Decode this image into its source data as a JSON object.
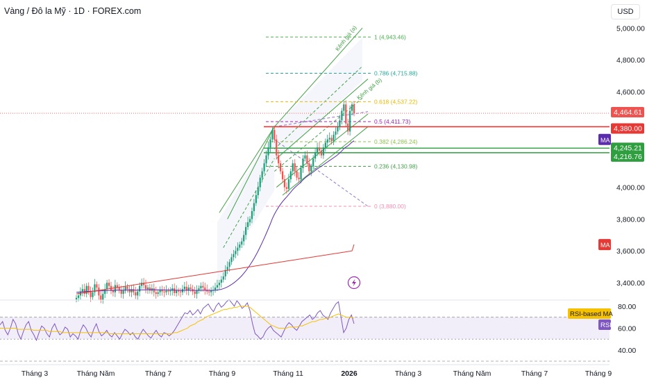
{
  "header": {
    "title": "Vàng / Đô la Mỹ · 1D · FOREX.com",
    "currency": "USD"
  },
  "colors": {
    "up": "#26a69a",
    "down": "#ef5350",
    "candle": "#1a9e78",
    "ma_short": "#5b2bb0",
    "ma_long": "#e53935",
    "channel": "#43a047",
    "level_red": "#e53935",
    "level_green": "#2e9e3f",
    "rsi_line": "#7e57c2",
    "rsi_ma": "#f5c100",
    "rsi_band": "#ede7f6",
    "fib_1": "#4caf50",
    "fib_0786": "#26a69a",
    "fib_0618": "#e6b800",
    "fib_05": "#9c27b0",
    "fib_0382": "#8bc34a",
    "fib_0236": "#43a047",
    "fib_0": "#f48fb1"
  },
  "chart_data": [
    {
      "type": "candlestick",
      "title": "Vàng / Đô la Mỹ · 1D · FOREX.com",
      "ylim": [
        3300,
        5080
      ],
      "y_ticks": [
        "5,000.00",
        "4,800.00",
        "4,600.00",
        "4,000.00",
        "3,800.00",
        "3,600.00",
        "3,400.00"
      ],
      "y_tick_values": [
        5000,
        4800,
        4600,
        4000,
        3800,
        3600,
        3400
      ],
      "x_labels": [
        "Tháng 3",
        "Tháng Năm",
        "Tháng 7",
        "Tháng 9",
        "Tháng 11",
        "2026",
        "Tháng 3",
        "Tháng Năm",
        "Tháng 7",
        "Tháng 9"
      ],
      "close_series": [
        3305,
        3320,
        3345,
        3360,
        3330,
        3380,
        3350,
        3310,
        3340,
        3390,
        3370,
        3320,
        3290,
        3330,
        3360,
        3400,
        3380,
        3350,
        3340,
        3385,
        3370,
        3355,
        3330,
        3350,
        3375,
        3360,
        3340,
        3360,
        3340,
        3320,
        3345,
        3380,
        3400,
        3385,
        3360,
        3370,
        3350,
        3365,
        3340,
        3330,
        3340,
        3355,
        3345,
        3340,
        3350,
        3345,
        3350,
        3365,
        3335,
        3350,
        3345,
        3340,
        3360,
        3375,
        3350,
        3370,
        3360,
        3345,
        3330,
        3350,
        3365,
        3380,
        3370,
        3355,
        3345,
        3340,
        3350,
        3355,
        3370,
        3385,
        3400,
        3420,
        3440,
        3480,
        3500,
        3530,
        3560,
        3580,
        3600,
        3620,
        3640,
        3660,
        3700,
        3750,
        3780,
        3800,
        3850,
        3900,
        3950,
        4000,
        4060,
        4100,
        4150,
        4200,
        4250,
        4300,
        4360,
        4300,
        4200,
        4150,
        4100,
        4050,
        4000,
        3990,
        4050,
        4100,
        4150,
        4100,
        4060,
        4050,
        4120,
        4180,
        4200,
        4150,
        4100,
        4130,
        4180,
        4220,
        4250,
        4230,
        4200,
        4250,
        4280,
        4300,
        4310,
        4290,
        4330,
        4350,
        4380,
        4420,
        4480,
        4520,
        4400,
        4350,
        4480,
        4520,
        4464
      ],
      "ma_short": [
        3340,
        3341,
        3342,
        3343,
        3344,
        3345,
        3346,
        3346,
        3347,
        3348,
        3349,
        3349,
        3349,
        3350,
        3350,
        3351,
        3352,
        3352,
        3352,
        3353,
        3353,
        3353,
        3353,
        3353,
        3354,
        3354,
        3354,
        3354,
        3354,
        3353,
        3353,
        3354,
        3355,
        3355,
        3355,
        3356,
        3356,
        3356,
        3356,
        3355,
        3355,
        3355,
        3355,
        3354,
        3354,
        3354,
        3354,
        3354,
        3353,
        3353,
        3353,
        3352,
        3352,
        3353,
        3353,
        3353,
        3353,
        3353,
        3352,
        3352,
        3352,
        3353,
        3353,
        3353,
        3353,
        3352,
        3352,
        3352,
        3353,
        3354,
        3356,
        3359,
        3363,
        3368,
        3374,
        3381,
        3389,
        3398,
        3408,
        3419,
        3431,
        3444,
        3459,
        3475,
        3493,
        3511,
        3531,
        3552,
        3575,
        3599,
        3625,
        3652,
        3680,
        3709,
        3739,
        3770,
        3803,
        3830,
        3853,
        3874,
        3893,
        3910,
        3925,
        3939,
        3954,
        3969,
        3985,
        3998,
        4010,
        4021,
        4033,
        4046,
        4058,
        4068,
        4077,
        4086,
        4095,
        4105,
        4115,
        4124,
        4132,
        4141,
        4150,
        4159,
        4168,
        4176,
        4185,
        4194,
        4204,
        4215,
        4228,
        4242,
        4252,
        4260,
        4271,
        4283,
        4292
      ],
      "ma_long": [
        3330,
        3332,
        3334,
        3336,
        3338,
        3340,
        3342,
        3344,
        3346,
        3348,
        3350,
        3352,
        3354,
        3356,
        3358,
        3360,
        3362,
        3364,
        3366,
        3368,
        3370,
        3372,
        3374,
        3376,
        3378,
        3380,
        3382,
        3384,
        3386,
        3388,
        3390,
        3392,
        3394,
        3396,
        3398,
        3400,
        3402,
        3404,
        3406,
        3408,
        3410,
        3412,
        3414,
        3416,
        3418,
        3420,
        3422,
        3424,
        3426,
        3428,
        3430,
        3432,
        3434,
        3436,
        3438,
        3440,
        3442,
        3444,
        3446,
        3448,
        3450,
        3452,
        3454,
        3456,
        3458,
        3460,
        3462,
        3464,
        3466,
        3468,
        3470,
        3472,
        3474,
        3476,
        3478,
        3480,
        3482,
        3484,
        3486,
        3488,
        3490,
        3492,
        3494,
        3496,
        3498,
        3500,
        3502,
        3504,
        3506,
        3508,
        3510,
        3512,
        3514,
        3516,
        3518,
        3520,
        3522,
        3524,
        3526,
        3528,
        3530,
        3532,
        3534,
        3536,
        3538,
        3540,
        3542,
        3544,
        3546,
        3548,
        3550,
        3552,
        3554,
        3556,
        3558,
        3560,
        3562,
        3564,
        3566,
        3568,
        3570,
        3572,
        3574,
        3576,
        3578,
        3580,
        3582,
        3584,
        3586,
        3588,
        3590,
        3592,
        3594,
        3596,
        3598,
        3600,
        3640
      ],
      "fib_levels": [
        {
          "label": "1 (4,943.46)",
          "value": 4943.46,
          "color_key": "fib_1"
        },
        {
          "label": "0.786 (4,715.88)",
          "value": 4715.88,
          "color_key": "fib_0786"
        },
        {
          "label": "0.618 (4,537.22)",
          "value": 4537.22,
          "color_key": "fib_0618"
        },
        {
          "label": "0.5 (4,411.73)",
          "value": 4411.73,
          "color_key": "fib_05"
        },
        {
          "label": "0.382 (4,286.24)",
          "value": 4286.24,
          "color_key": "fib_0382"
        },
        {
          "label": "0.236 (4,130.98)",
          "value": 4130.98,
          "color_key": "fib_0236"
        },
        {
          "label": "0 (3,880.00)",
          "value": 3880.0,
          "color_key": "fib_0"
        }
      ],
      "price_labels": [
        {
          "text": "4,464.61",
          "value": 4464.61,
          "color_key": "down"
        },
        {
          "text": "4,380.00",
          "value": 4380.0,
          "color_key": "level_red"
        },
        {
          "text": "4,245.21",
          "value": 4245.21,
          "color_key": "level_green"
        },
        {
          "text": "4,216.76",
          "value": 4216.76,
          "color_key": "level_green"
        }
      ],
      "horizontal_levels": [
        {
          "value": 4380.0,
          "color_key": "level_red"
        },
        {
          "value": 4245.21,
          "color_key": "level_green"
        },
        {
          "value": 4216.76,
          "color_key": "level_green"
        }
      ],
      "channel_labels": [
        "Kênh giá (a)",
        "Kênh giá (b)"
      ],
      "ma_badges": [
        {
          "text": "MA",
          "value": 4300,
          "color_key": "ma_short"
        },
        {
          "text": "MA",
          "value": 3640,
          "color_key": "ma_long"
        }
      ]
    },
    {
      "type": "line",
      "name": "RSI",
      "ylim": [
        30,
        90
      ],
      "y_ticks": [
        "80.00",
        "60.00",
        "40.00"
      ],
      "y_tick_values": [
        80,
        60,
        40
      ],
      "band": [
        50,
        70
      ],
      "labels": {
        "rsi_ma": "RSI-based MA",
        "rsi": "RSI"
      },
      "rsi": [
        63,
        66,
        58,
        54,
        60,
        68,
        64,
        55,
        50,
        57,
        63,
        66,
        58,
        54,
        49,
        56,
        62,
        60,
        55,
        52,
        60,
        64,
        58,
        54,
        56,
        61,
        59,
        52,
        55,
        53,
        50,
        58,
        63,
        60,
        55,
        52,
        59,
        64,
        57,
        53,
        55,
        58,
        54,
        52,
        56,
        53,
        50,
        55,
        59,
        57,
        54,
        56,
        52,
        50,
        55,
        59,
        56,
        53,
        51,
        55,
        58,
        54,
        52,
        56,
        55,
        53,
        55,
        58,
        62,
        66,
        70,
        74,
        73,
        76,
        72,
        74,
        77,
        73,
        78,
        80,
        82,
        78,
        75,
        80,
        83,
        79,
        81,
        84,
        86,
        83,
        80,
        85,
        82,
        78,
        80,
        83,
        76,
        64,
        55,
        53,
        50,
        52,
        57,
        60,
        62,
        58,
        56,
        54,
        52,
        57,
        62,
        65,
        63,
        60,
        58,
        62,
        66,
        68,
        70,
        72,
        68,
        70,
        74,
        76,
        72,
        70,
        68,
        74,
        78,
        82,
        84,
        70,
        56,
        60,
        68,
        72,
        64
      ],
      "rsi_ma": [
        60,
        60,
        60,
        60,
        60,
        60,
        60,
        59,
        59,
        59,
        59,
        59,
        59,
        58,
        58,
        58,
        58,
        58,
        58,
        57,
        57,
        57,
        57,
        57,
        56,
        56,
        56,
        56,
        56,
        56,
        56,
        56,
        56,
        56,
        56,
        56,
        56,
        56,
        56,
        56,
        56,
        56,
        55,
        55,
        55,
        55,
        55,
        55,
        55,
        55,
        55,
        55,
        55,
        55,
        55,
        55,
        55,
        55,
        55,
        55,
        55,
        55,
        55,
        55,
        55,
        55,
        55,
        56,
        56,
        57,
        58,
        59,
        60,
        62,
        63,
        64,
        66,
        67,
        68,
        70,
        71,
        72,
        73,
        74,
        75,
        76,
        77,
        77,
        78,
        78,
        79,
        79,
        80,
        80,
        80,
        80,
        79,
        77,
        75,
        73,
        71,
        69,
        67,
        65,
        63,
        62,
        61,
        60,
        60,
        60,
        60,
        61,
        61,
        61,
        61,
        62,
        62,
        63,
        64,
        65,
        66,
        66,
        67,
        68,
        68,
        69,
        69,
        70,
        71,
        72,
        73,
        72,
        71,
        70,
        70,
        70,
        69
      ]
    }
  ]
}
